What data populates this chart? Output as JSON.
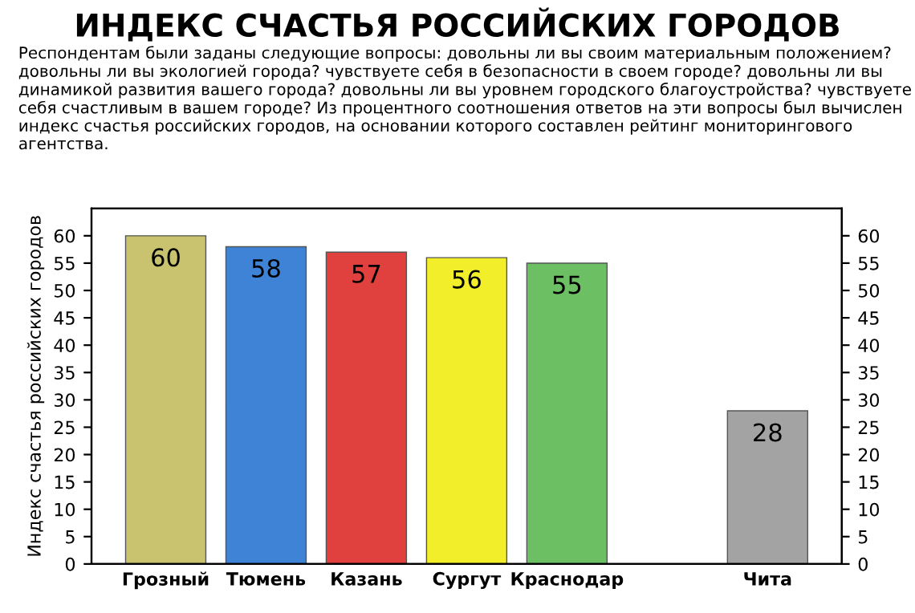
{
  "chart_data": {
    "type": "bar",
    "title": "ИНДЕКС СЧАСТЬЯ РОССИЙСКИХ ГОРОДОВ",
    "subtitle": "Респондентам были заданы следующие вопросы: довольны ли вы своим материальным положением? довольны ли вы экологией города? чувствуете себя в безопасности в своем городе? довольны ли вы динамикой развития вашего города? довольны ли вы уровнем городского благоустройства? чувствуете себя счастливым в вашем городе? Из процентного соотношения ответов на эти вопросы был вычислен индекс счастья российских городов, на основании которого составлен рейтинг мониторингового агентства.",
    "ylabel": "Индекс счастья российских городов",
    "categories": [
      "Грозный",
      "Тюмень",
      "Казань",
      "Сургут",
      "Краснодар",
      null,
      "Чита"
    ],
    "values": [
      60,
      58,
      57,
      56,
      55,
      null,
      28
    ],
    "colors": [
      "#c9c26e",
      "#3f83d6",
      "#e0413f",
      "#f2ee2a",
      "#6cc063",
      "#cccccc",
      "#a3a3a3"
    ],
    "ylim": [
      0,
      65
    ],
    "yticks": [
      0,
      5,
      10,
      15,
      20,
      25,
      30,
      35,
      40,
      45,
      50,
      55,
      60
    ],
    "y2lim": [
      0,
      65
    ],
    "y2ticks": [
      0,
      5,
      10,
      15,
      20,
      25,
      30,
      35,
      40,
      45,
      50,
      55,
      60
    ],
    "data_labels": true,
    "grid": false,
    "legend": false
  }
}
